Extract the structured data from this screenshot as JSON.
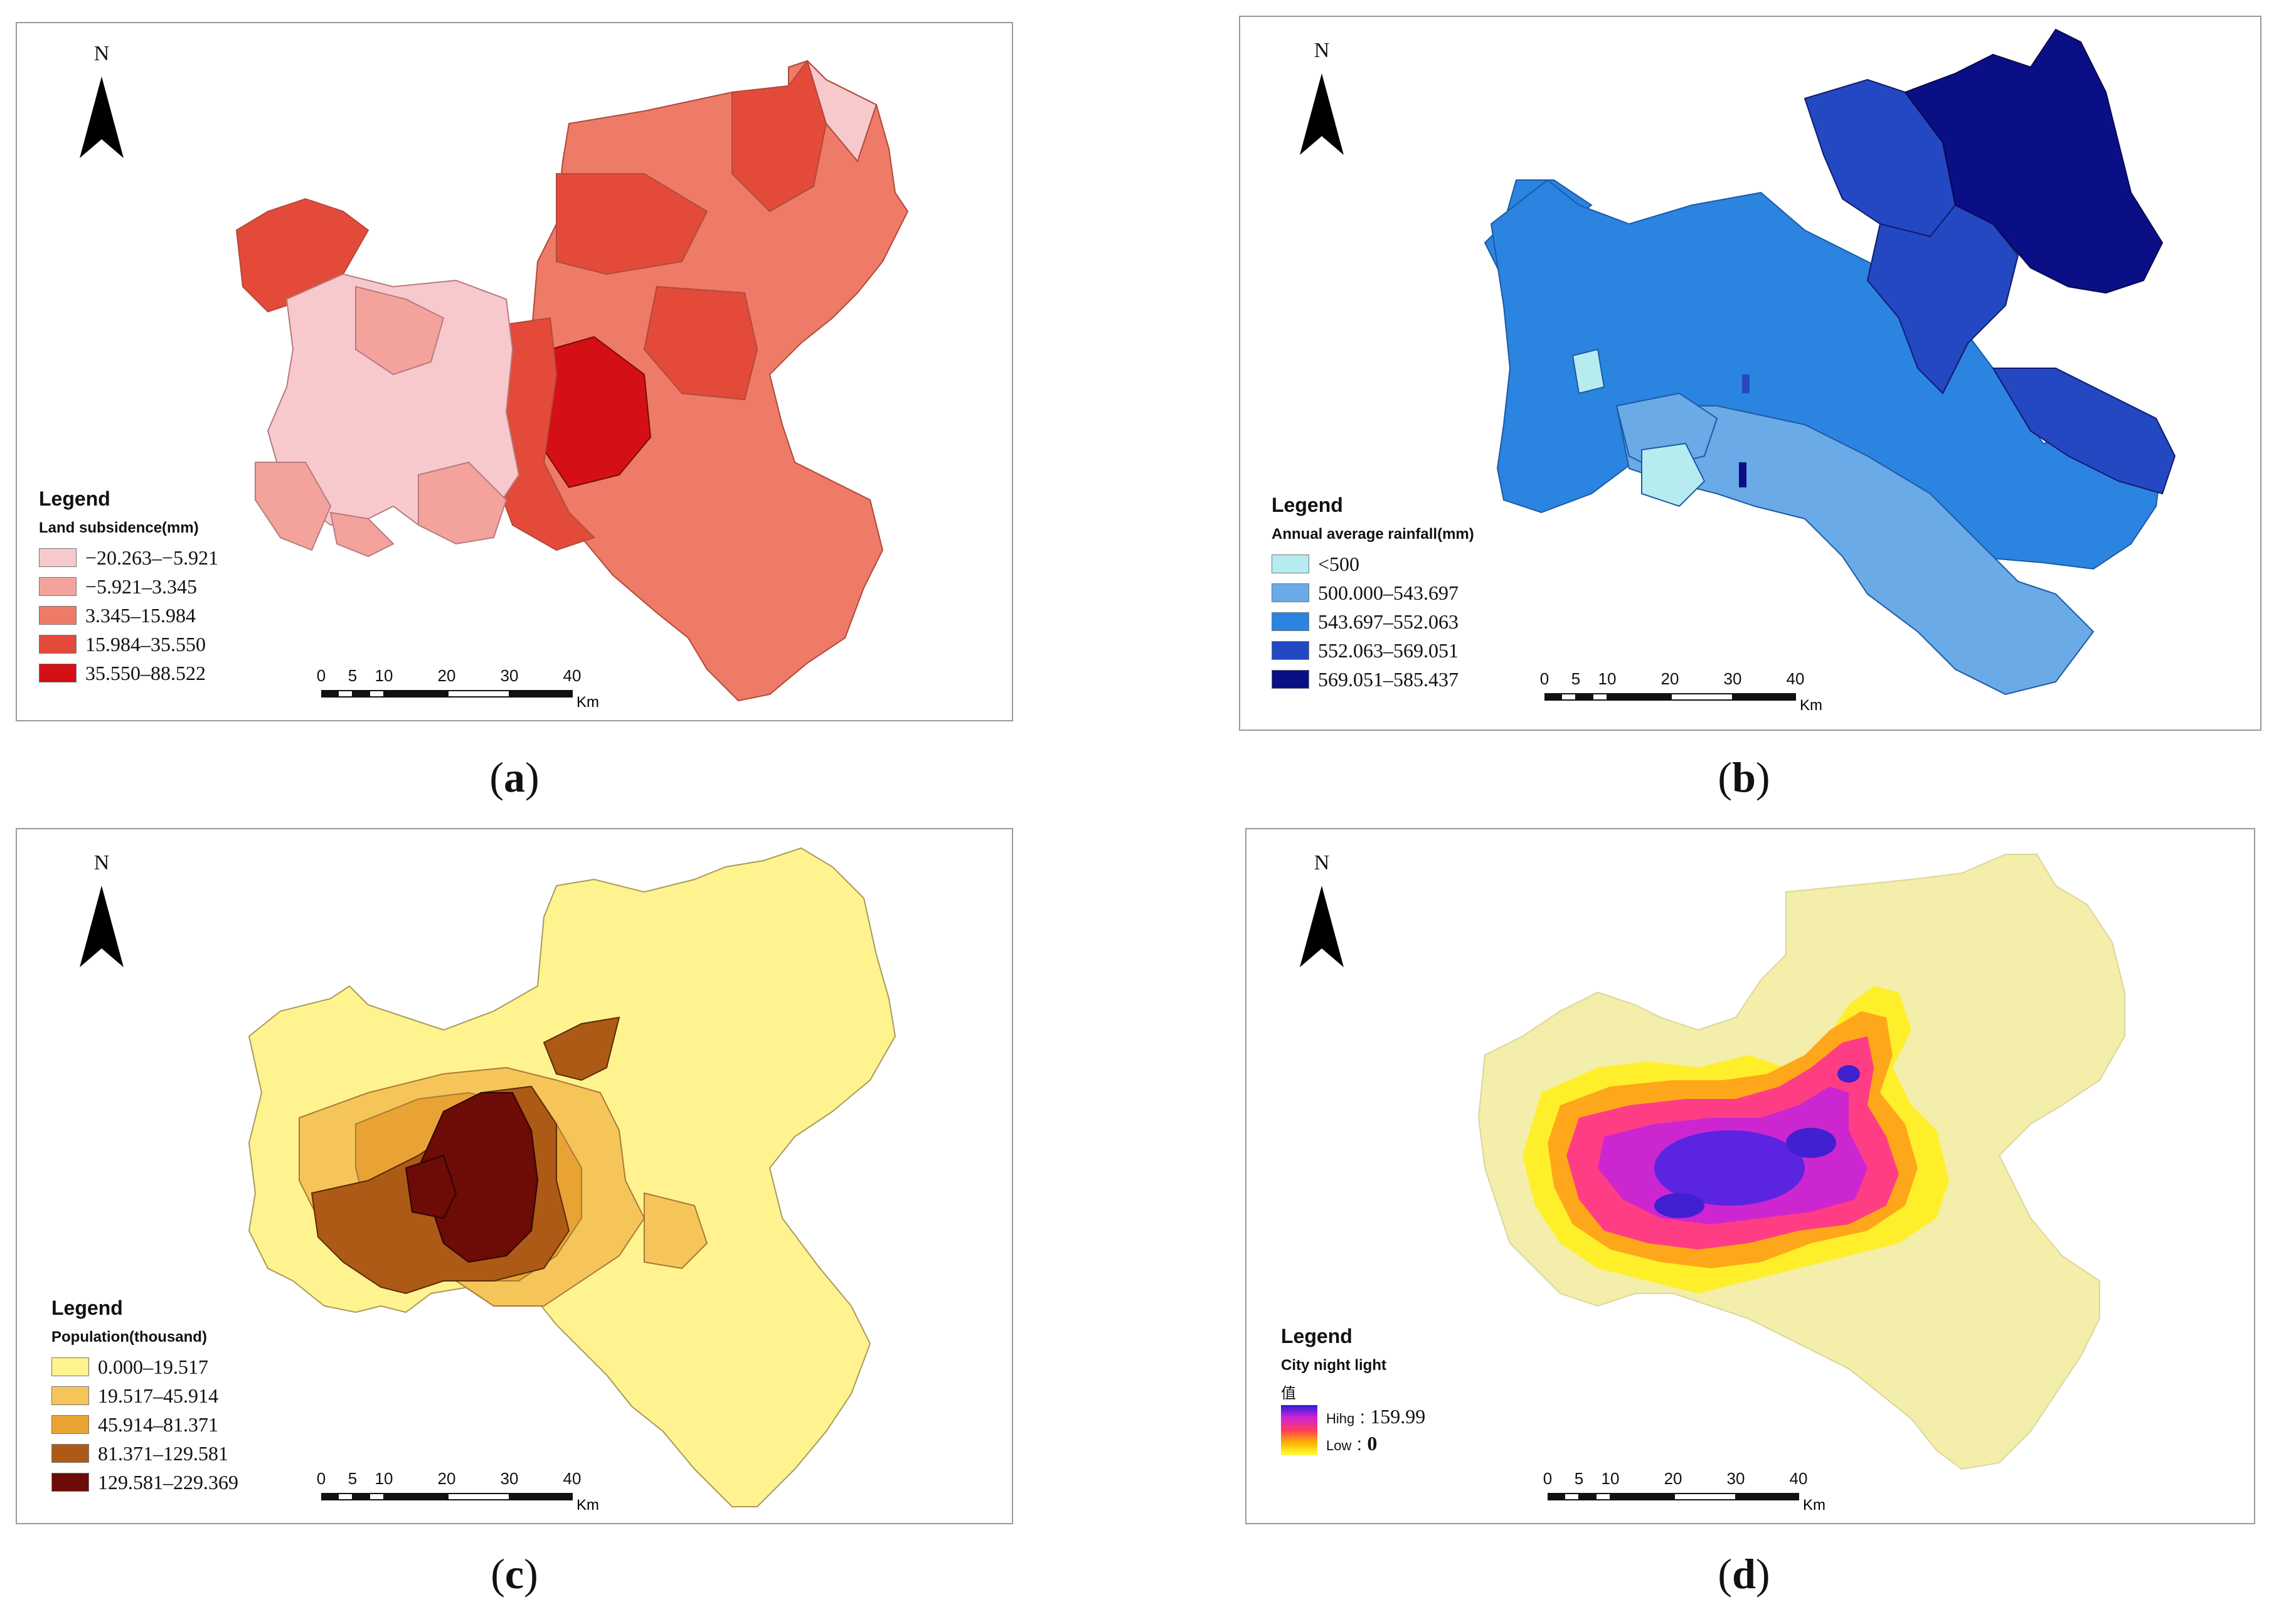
{
  "panels": [
    {
      "id": "a",
      "caption_letter": "a",
      "north": "N",
      "legend_title": "Legend",
      "legend_subtitle": "Land subsidence(mm)",
      "classes": [
        {
          "label": "−20.263–−5.921",
          "color": "#f8c9cc"
        },
        {
          "label": "−5.921–3.345",
          "color": "#f4a39c"
        },
        {
          "label": "3.345–15.984",
          "color": "#ee7a68"
        },
        {
          "label": "15.984–35.550",
          "color": "#e44a3a"
        },
        {
          "label": "35.550–88.522",
          "color": "#d40f16"
        }
      ],
      "scale_ticks": [
        "0",
        "5",
        "10",
        "20",
        "30",
        "40"
      ],
      "scale_unit": "Km"
    },
    {
      "id": "b",
      "caption_letter": "b",
      "north": "N",
      "legend_title": "Legend",
      "legend_subtitle": "Annual average rainfall(mm)",
      "classes": [
        {
          "label": "<500",
          "color": "#b6ecf0"
        },
        {
          "label": "500.000–543.697",
          "color": "#6aaae6"
        },
        {
          "label": "543.697–552.063",
          "color": "#2a84e0"
        },
        {
          "label": "552.063–569.051",
          "color": "#2348c2"
        },
        {
          "label": "569.051–585.437",
          "color": "#0b0f86"
        }
      ],
      "scale_ticks": [
        "0",
        "5",
        "10",
        "20",
        "30",
        "40"
      ],
      "scale_unit": "Km"
    },
    {
      "id": "c",
      "caption_letter": "c",
      "north": "N",
      "legend_title": "Legend",
      "legend_subtitle": "Population(thousand)",
      "classes": [
        {
          "label": "0.000–19.517",
          "color": "#fff38f"
        },
        {
          "label": "19.517–45.914",
          "color": "#f5c559"
        },
        {
          "label": "45.914–81.371",
          "color": "#e9a334"
        },
        {
          "label": "81.371–129.581",
          "color": "#ac5a16"
        },
        {
          "label": "129.581–229.369",
          "color": "#6d0b06"
        }
      ],
      "scale_ticks": [
        "0",
        "5",
        "10",
        "20",
        "30",
        "40"
      ],
      "scale_unit": "Km"
    },
    {
      "id": "d",
      "caption_letter": "d",
      "north": "N",
      "legend_title": "Legend",
      "legend_subtitle": "City night light",
      "value_label": "值",
      "high_label": "Hihg",
      "high_value": "159.99",
      "low_label": "Low",
      "low_value": "0",
      "scale_ticks": [
        "0",
        "5",
        "10",
        "20",
        "30",
        "40"
      ],
      "scale_unit": "Km"
    }
  ]
}
